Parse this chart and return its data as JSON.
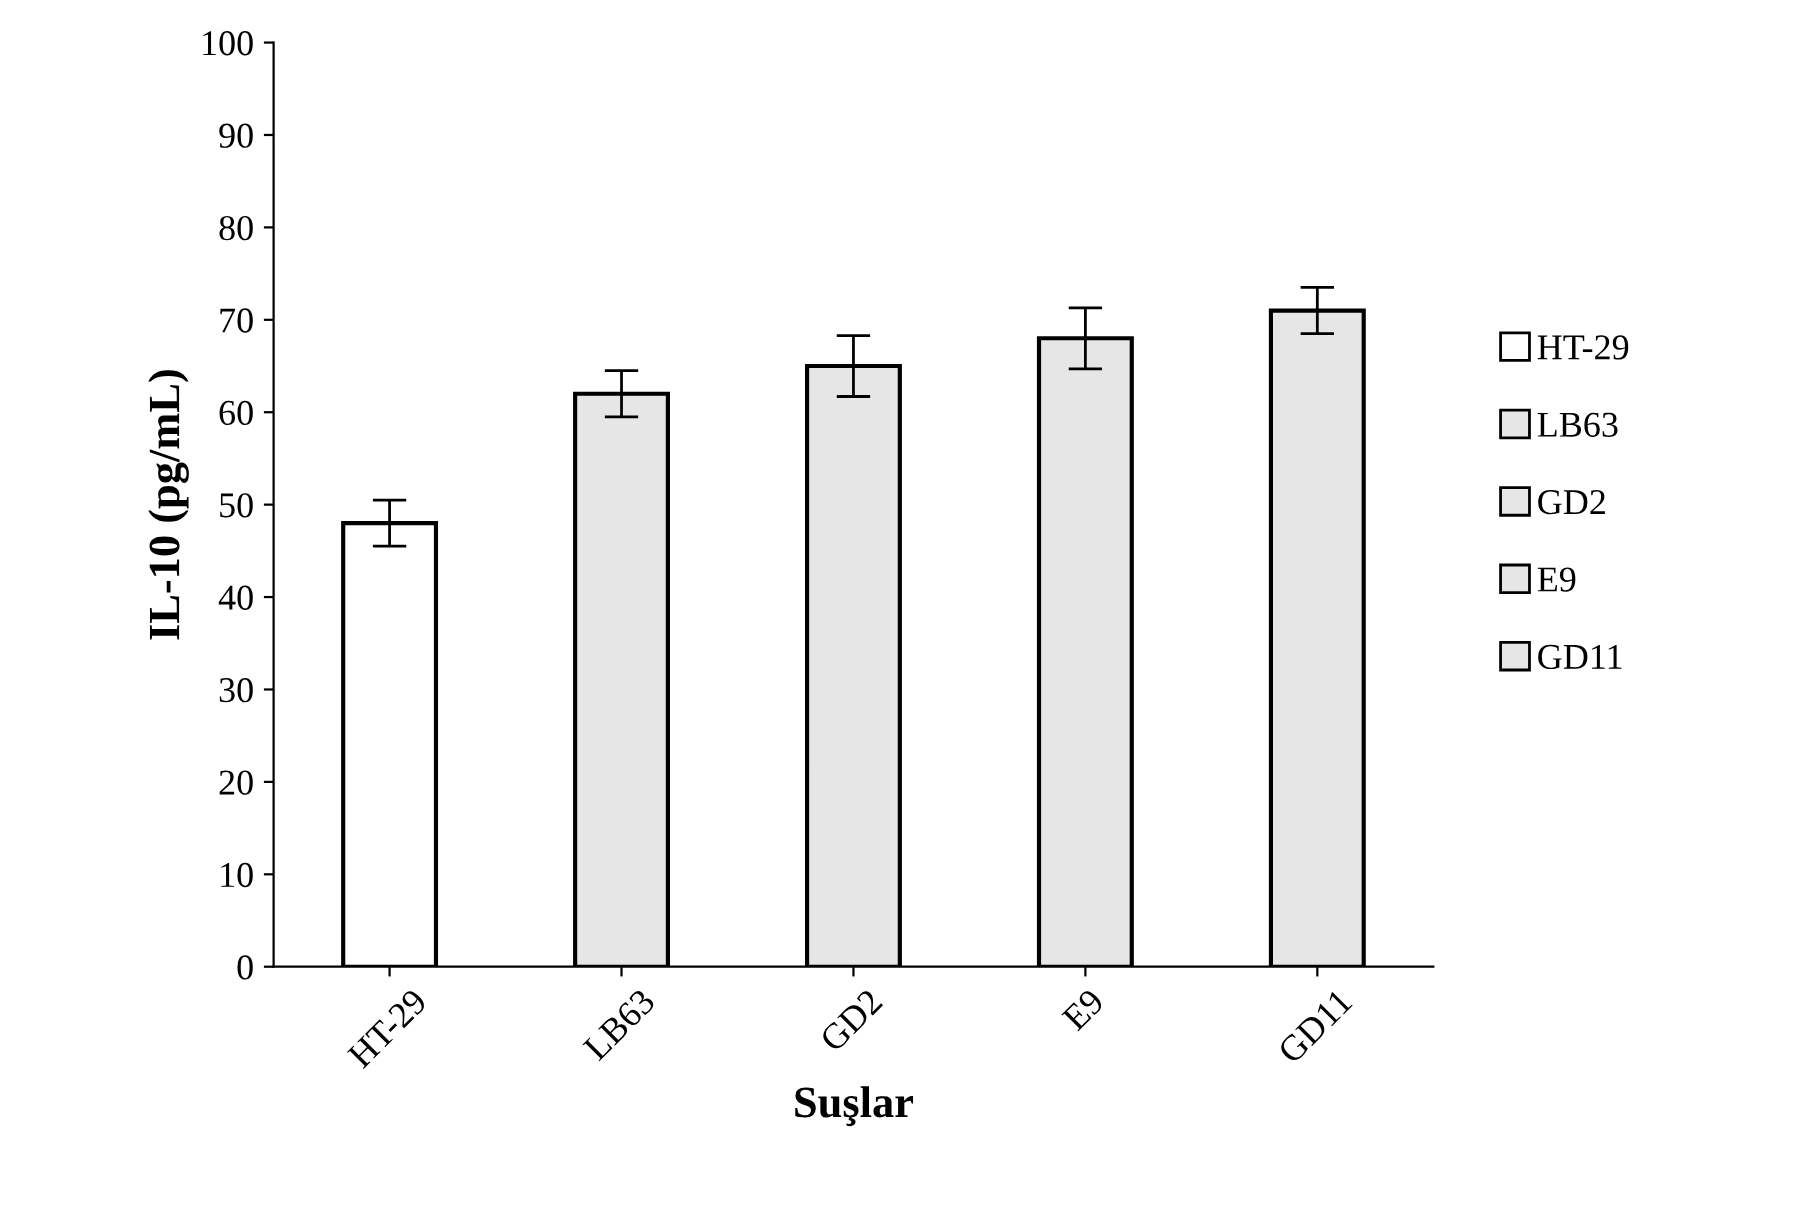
{
  "chart_data": {
    "type": "bar",
    "xlabel": "Suşlar",
    "ylabel": "IL-10 (pg/mL)",
    "categories": [
      "HT-29",
      "LB63",
      "GD2",
      "E9",
      "GD11"
    ],
    "series": [
      {
        "name": "HT-29",
        "color": "#ffffff",
        "values": [
          48,
          null,
          null,
          null,
          null
        ],
        "errors": [
          2.5,
          null,
          null,
          null,
          null
        ]
      },
      {
        "name": "LB63",
        "color": "#e6e6e6",
        "values": [
          null,
          62,
          null,
          null,
          null
        ],
        "errors": [
          null,
          2.5,
          null,
          null,
          null
        ]
      },
      {
        "name": "GD2",
        "color": "#e6e6e6",
        "values": [
          null,
          null,
          65,
          null,
          null
        ],
        "errors": [
          null,
          null,
          3.3,
          null,
          null
        ]
      },
      {
        "name": "E9",
        "color": "#e6e6e6",
        "values": [
          null,
          null,
          null,
          68,
          null
        ],
        "errors": [
          null,
          null,
          null,
          3.3,
          null
        ]
      },
      {
        "name": "GD11",
        "color": "#e6e6e6",
        "values": [
          null,
          null,
          null,
          null,
          71
        ],
        "errors": [
          null,
          null,
          null,
          null,
          2.5
        ]
      }
    ],
    "ylim": [
      0,
      100
    ],
    "yticks": [
      0,
      10,
      20,
      30,
      40,
      50,
      60,
      70,
      80,
      90,
      100
    ],
    "grid": false,
    "legend": "right"
  }
}
